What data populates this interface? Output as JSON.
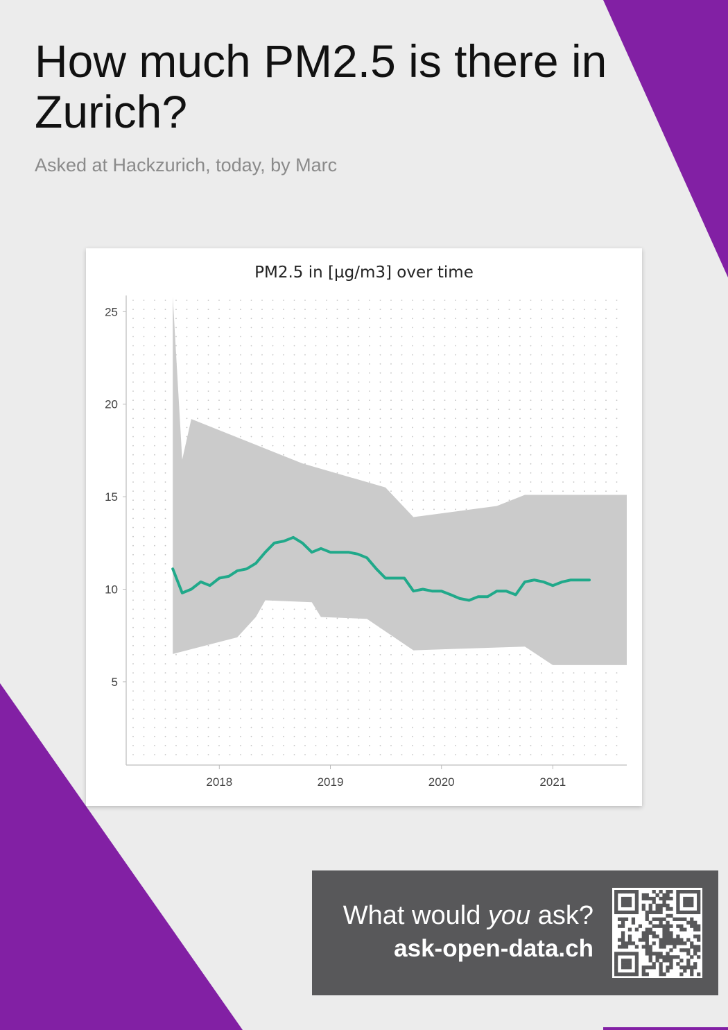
{
  "page": {
    "title": "How much PM2.5 is there in Zurich?",
    "subtitle": "Asked at Hackzurich, today, by Marc",
    "colors": {
      "background": "#ececec",
      "accent": "#8220a4",
      "line": "#20a98a",
      "band": "#cbcbcb",
      "cta_bg": "#58585a"
    }
  },
  "cta": {
    "question_prefix": "What would ",
    "question_emphasis": "you",
    "question_suffix": " ask?",
    "url": "ask-open-data.ch",
    "qr_icon": "qr-code-icon"
  },
  "chart_data": {
    "type": "line",
    "title": "PM2.5 in [µg/m3] over time",
    "xlabel": "",
    "ylabel": "",
    "x_tick_labels": [
      "2018",
      "2019",
      "2020",
      "2021"
    ],
    "y_tick_labels": [
      "5",
      "10",
      "15",
      "20",
      "25"
    ],
    "y_ticks": [
      5,
      10,
      15,
      20,
      25
    ],
    "ylim": [
      0.5,
      25.8
    ],
    "xlim": [
      "2017-03-01",
      "2021-09-01"
    ],
    "grid": "dotted",
    "legend": "none",
    "series": [
      {
        "values": [
          [
            "2017-08-01",
            11.1
          ],
          [
            "2017-09-01",
            9.8
          ],
          [
            "2017-10-01",
            10.0
          ],
          [
            "2017-11-01",
            10.4
          ],
          [
            "2017-12-01",
            10.2
          ],
          [
            "2018-01-01",
            10.6
          ],
          [
            "2018-02-01",
            10.7
          ],
          [
            "2018-03-01",
            11.0
          ],
          [
            "2018-04-01",
            11.1
          ],
          [
            "2018-05-01",
            11.4
          ],
          [
            "2018-06-01",
            12.0
          ],
          [
            "2018-07-01",
            12.5
          ],
          [
            "2018-08-01",
            12.6
          ],
          [
            "2018-09-01",
            12.8
          ],
          [
            "2018-10-01",
            12.5
          ],
          [
            "2018-11-01",
            12.0
          ],
          [
            "2018-12-01",
            12.2
          ],
          [
            "2019-01-01",
            12.0
          ],
          [
            "2019-02-01",
            12.0
          ],
          [
            "2019-03-01",
            12.0
          ],
          [
            "2019-04-01",
            11.9
          ],
          [
            "2019-05-01",
            11.7
          ],
          [
            "2019-06-01",
            11.1
          ],
          [
            "2019-07-01",
            10.6
          ],
          [
            "2019-08-01",
            10.6
          ],
          [
            "2019-09-01",
            10.6
          ],
          [
            "2019-10-01",
            9.9
          ],
          [
            "2019-11-01",
            10.0
          ],
          [
            "2019-12-01",
            9.9
          ],
          [
            "2020-01-01",
            9.9
          ],
          [
            "2020-02-01",
            9.7
          ],
          [
            "2020-03-01",
            9.5
          ],
          [
            "2020-04-01",
            9.4
          ],
          [
            "2020-05-01",
            9.6
          ],
          [
            "2020-06-01",
            9.6
          ],
          [
            "2020-07-01",
            9.9
          ],
          [
            "2020-08-01",
            9.9
          ],
          [
            "2020-09-01",
            9.7
          ],
          [
            "2020-10-01",
            10.4
          ],
          [
            "2020-11-01",
            10.5
          ],
          [
            "2020-12-01",
            10.4
          ],
          [
            "2021-01-01",
            10.2
          ],
          [
            "2021-02-01",
            10.4
          ],
          [
            "2021-03-01",
            10.5
          ],
          [
            "2021-04-01",
            10.5
          ],
          [
            "2021-05-01",
            10.5
          ]
        ]
      }
    ],
    "band": {
      "type": "area",
      "upper": [
        [
          "2017-08-01",
          25.8
        ],
        [
          "2017-09-01",
          17.0
        ],
        [
          "2017-10-01",
          19.2
        ],
        [
          "2018-10-01",
          16.8
        ],
        [
          "2019-07-01",
          15.5
        ],
        [
          "2019-10-01",
          13.9
        ],
        [
          "2020-07-01",
          14.5
        ],
        [
          "2020-10-01",
          15.1
        ],
        [
          "2021-09-01",
          15.1
        ]
      ],
      "lower": [
        [
          "2017-08-01",
          6.5
        ],
        [
          "2018-03-01",
          7.4
        ],
        [
          "2018-05-01",
          8.5
        ],
        [
          "2018-06-01",
          9.4
        ],
        [
          "2018-11-01",
          9.3
        ],
        [
          "2018-12-01",
          8.5
        ],
        [
          "2019-05-01",
          8.4
        ],
        [
          "2019-10-01",
          6.7
        ],
        [
          "2020-10-01",
          6.9
        ],
        [
          "2021-01-01",
          5.9
        ],
        [
          "2021-09-01",
          5.9
        ]
      ]
    }
  }
}
